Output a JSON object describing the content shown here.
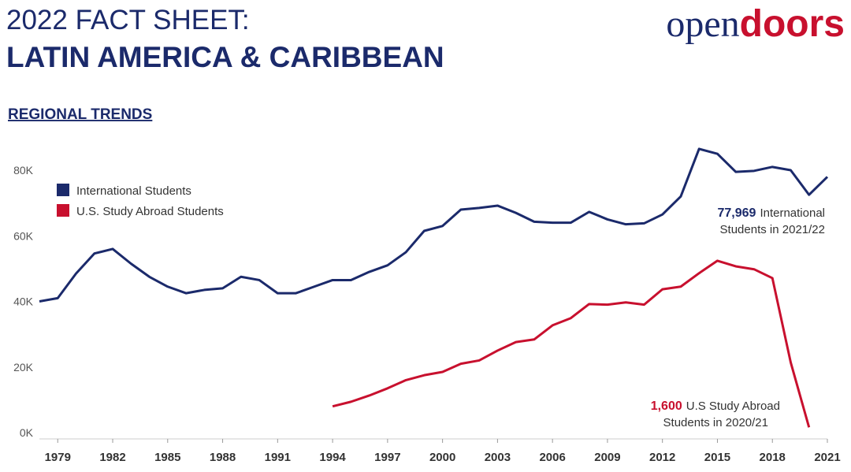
{
  "header": {
    "title_line1": "2022 FACT SHEET:",
    "title_line2": "LATIN AMERICA & CARIBBEAN",
    "logo_part1": "open",
    "logo_part2": "doors",
    "section": "REGIONAL TRENDS"
  },
  "chart_data": {
    "type": "line",
    "x": [
      1978,
      1979,
      1980,
      1981,
      1982,
      1983,
      1984,
      1985,
      1986,
      1987,
      1988,
      1989,
      1990,
      1991,
      1992,
      1993,
      1994,
      1995,
      1996,
      1997,
      1998,
      1999,
      2000,
      2001,
      2002,
      2003,
      2004,
      2005,
      2006,
      2007,
      2008,
      2009,
      2010,
      2011,
      2012,
      2013,
      2014,
      2015,
      2016,
      2017,
      2018,
      2019,
      2020,
      2021
    ],
    "series": [
      {
        "name": "International Students",
        "color": "#1b2a6b",
        "values": [
          40000,
          41000,
          48500,
          54600,
          56000,
          51500,
          47500,
          44500,
          42500,
          43500,
          44000,
          47500,
          46500,
          42500,
          42500,
          44500,
          46500,
          46500,
          49000,
          51000,
          55000,
          61500,
          63000,
          68000,
          68500,
          69200,
          67000,
          64300,
          64000,
          64000,
          67300,
          65000,
          63500,
          63800,
          66500,
          72000,
          86500,
          85000,
          79500,
          79800,
          81000,
          80000,
          72500,
          77969
        ]
      },
      {
        "name": "U.S. Study Abroad Students",
        "color": "#c8102e",
        "values": [
          null,
          null,
          null,
          null,
          null,
          null,
          null,
          null,
          null,
          null,
          null,
          null,
          null,
          null,
          null,
          null,
          8000,
          9400,
          11300,
          13500,
          16000,
          17500,
          18500,
          21000,
          22000,
          25000,
          27600,
          28400,
          32700,
          34900,
          39200,
          39000,
          39700,
          39000,
          43700,
          44500,
          48600,
          52400,
          50700,
          49800,
          47100,
          21400,
          1600,
          null
        ]
      }
    ],
    "xlim": [
      1978,
      2021
    ],
    "xticks": [
      1979,
      1982,
      1985,
      1988,
      1991,
      1994,
      1997,
      2000,
      2003,
      2006,
      2009,
      2012,
      2015,
      2018,
      2021
    ],
    "ylim": [
      0,
      80000
    ],
    "yticks": [
      {
        "value": 0,
        "label": "0K"
      },
      {
        "value": 20000,
        "label": "20K"
      },
      {
        "value": 40000,
        "label": "40K"
      },
      {
        "value": 60000,
        "label": "60K"
      },
      {
        "value": 80000,
        "label": "80K"
      }
    ],
    "grid": false,
    "annotations": [
      {
        "highlight": "77,969",
        "line1": "International",
        "line2": "Students in 2021/22"
      },
      {
        "highlight": "1,600",
        "line1": "U.S Study Abroad",
        "line2": "Students in 2020/21"
      }
    ]
  }
}
